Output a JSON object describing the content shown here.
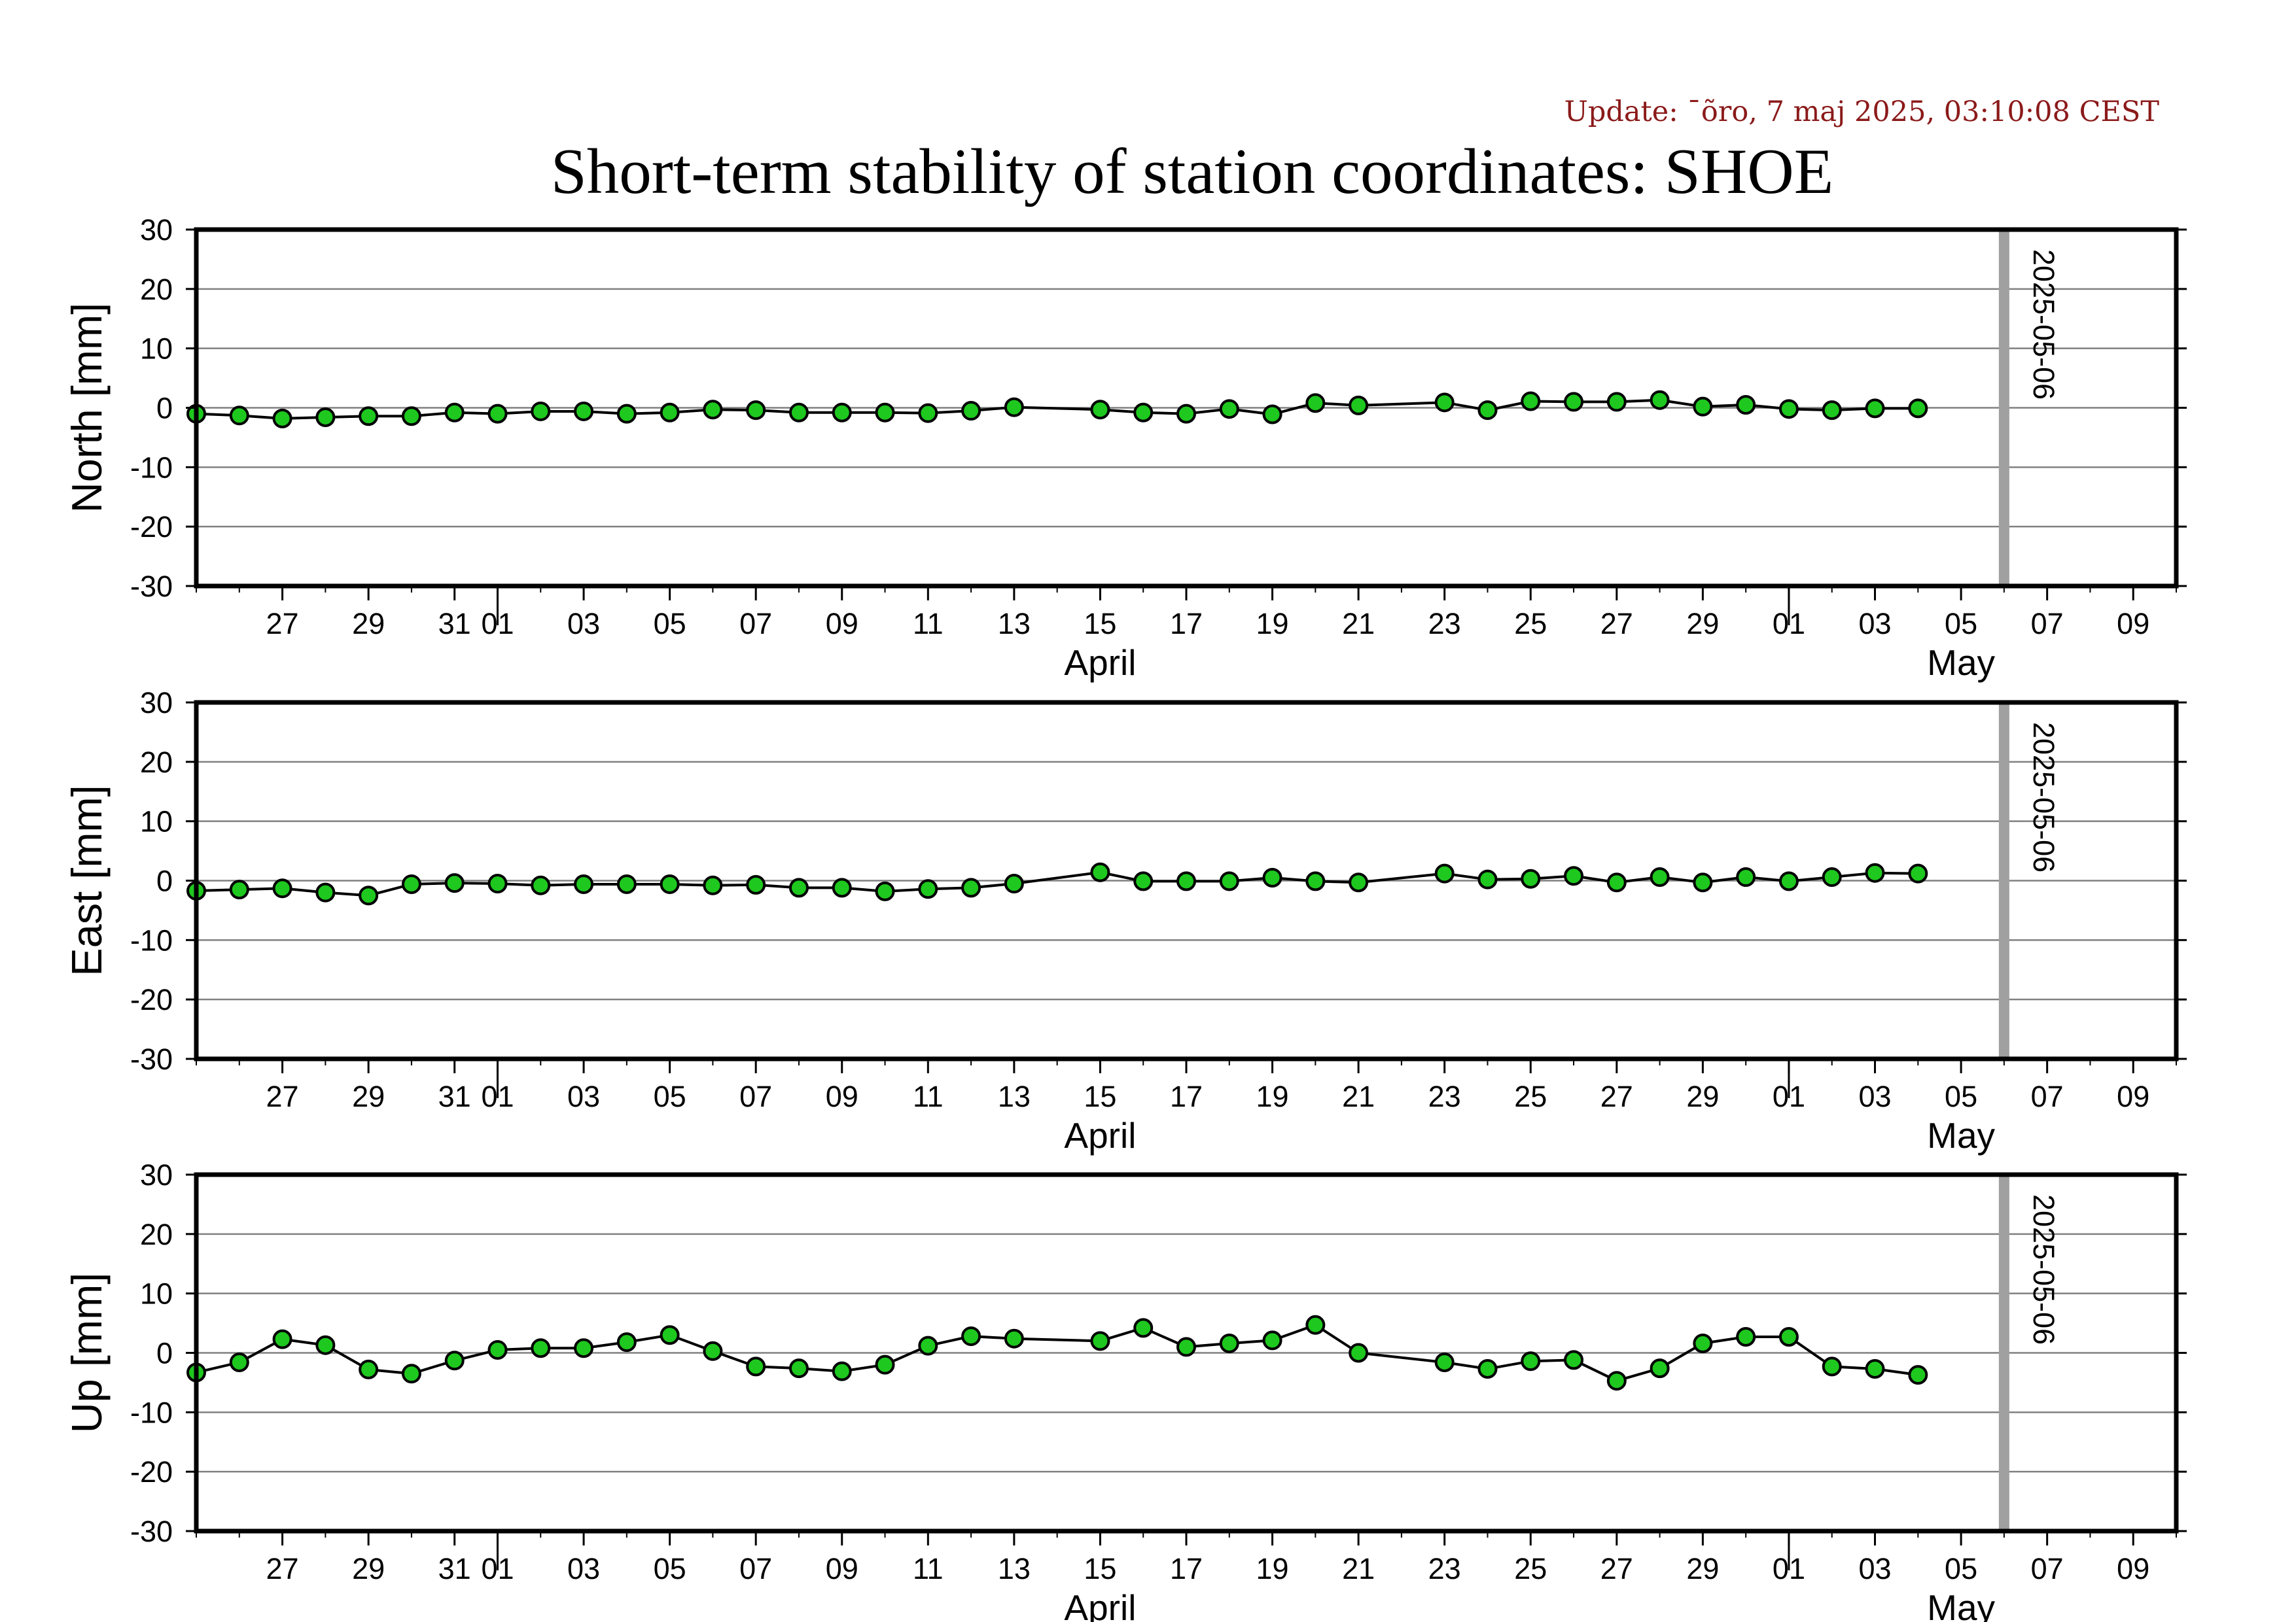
{
  "header": {
    "update_text": "Update: ¯õro, 7 maj 2025, 03:10:08 CEST",
    "title": "Short-term stability of station coordinates: SHOE"
  },
  "colors": {
    "marker_fill": "#1ec81e",
    "marker_edge": "#000000",
    "line": "#000000",
    "grid": "#808080",
    "current_date_bar": "#a0a0a0",
    "update_text": "#8b1a1a"
  },
  "chart_data": [
    {
      "type": "line",
      "ylabel": "North [mm]",
      "ylim": [
        -30,
        30
      ],
      "yticks": [
        30,
        20,
        10,
        0,
        -10,
        -20,
        -30
      ],
      "xlim": [
        "2025-03-25",
        "2025-05-10"
      ],
      "grid": true,
      "current_date_label": "2025-05-06",
      "x": [
        "2025-03-25",
        "2025-03-26",
        "2025-03-27",
        "2025-03-28",
        "2025-03-29",
        "2025-03-30",
        "2025-03-31",
        "2025-04-01",
        "2025-04-02",
        "2025-04-03",
        "2025-04-04",
        "2025-04-05",
        "2025-04-06",
        "2025-04-07",
        "2025-04-08",
        "2025-04-09",
        "2025-04-10",
        "2025-04-11",
        "2025-04-12",
        "2025-04-13",
        "2025-04-15",
        "2025-04-16",
        "2025-04-17",
        "2025-04-18",
        "2025-04-19",
        "2025-04-20",
        "2025-04-21",
        "2025-04-23",
        "2025-04-24",
        "2025-04-25",
        "2025-04-26",
        "2025-04-27",
        "2025-04-28",
        "2025-04-29",
        "2025-04-30",
        "2025-05-01",
        "2025-05-02",
        "2025-05-03",
        "2025-05-04"
      ],
      "y": [
        -1.0,
        -1.3,
        -1.8,
        -1.6,
        -1.4,
        -1.4,
        -0.8,
        -1.0,
        -0.6,
        -0.6,
        -1.0,
        -0.8,
        -0.3,
        -0.4,
        -0.8,
        -0.8,
        -0.8,
        -0.9,
        -0.5,
        0.1,
        -0.3,
        -0.8,
        -1.0,
        -0.2,
        -1.1,
        0.8,
        0.4,
        0.9,
        -0.4,
        1.1,
        1.0,
        1.0,
        1.3,
        0.2,
        0.5,
        -0.2,
        -0.4,
        -0.1,
        -0.1
      ]
    },
    {
      "type": "line",
      "ylabel": "East [mm]",
      "ylim": [
        -30,
        30
      ],
      "yticks": [
        30,
        20,
        10,
        0,
        -10,
        -20,
        -30
      ],
      "xlim": [
        "2025-03-25",
        "2025-05-10"
      ],
      "grid": true,
      "current_date_label": "2025-05-06",
      "x": [
        "2025-03-25",
        "2025-03-26",
        "2025-03-27",
        "2025-03-28",
        "2025-03-29",
        "2025-03-30",
        "2025-03-31",
        "2025-04-01",
        "2025-04-02",
        "2025-04-03",
        "2025-04-04",
        "2025-04-05",
        "2025-04-06",
        "2025-04-07",
        "2025-04-08",
        "2025-04-09",
        "2025-04-10",
        "2025-04-11",
        "2025-04-12",
        "2025-04-13",
        "2025-04-15",
        "2025-04-16",
        "2025-04-17",
        "2025-04-18",
        "2025-04-19",
        "2025-04-20",
        "2025-04-21",
        "2025-04-23",
        "2025-04-24",
        "2025-04-25",
        "2025-04-26",
        "2025-04-27",
        "2025-04-28",
        "2025-04-29",
        "2025-04-30",
        "2025-05-01",
        "2025-05-02",
        "2025-05-03",
        "2025-05-04"
      ],
      "y": [
        -1.7,
        -1.5,
        -1.3,
        -2.0,
        -2.5,
        -0.6,
        -0.4,
        -0.5,
        -0.8,
        -0.6,
        -0.6,
        -0.6,
        -0.8,
        -0.7,
        -1.2,
        -1.2,
        -1.8,
        -1.4,
        -1.2,
        -0.5,
        1.4,
        -0.1,
        -0.1,
        -0.1,
        0.5,
        -0.1,
        -0.3,
        1.2,
        0.2,
        0.3,
        0.8,
        -0.3,
        0.6,
        -0.3,
        0.6,
        -0.1,
        0.6,
        1.3,
        1.2
      ]
    },
    {
      "type": "line",
      "ylabel": "Up [mm]",
      "ylim": [
        -30,
        30
      ],
      "yticks": [
        30,
        20,
        10,
        0,
        -10,
        -20,
        -30
      ],
      "xlim": [
        "2025-03-25",
        "2025-05-10"
      ],
      "grid": true,
      "current_date_label": "2025-05-06",
      "x": [
        "2025-03-25",
        "2025-03-26",
        "2025-03-27",
        "2025-03-28",
        "2025-03-29",
        "2025-03-30",
        "2025-03-31",
        "2025-04-01",
        "2025-04-02",
        "2025-04-03",
        "2025-04-04",
        "2025-04-05",
        "2025-04-06",
        "2025-04-07",
        "2025-04-08",
        "2025-04-09",
        "2025-04-10",
        "2025-04-11",
        "2025-04-12",
        "2025-04-13",
        "2025-04-15",
        "2025-04-16",
        "2025-04-17",
        "2025-04-18",
        "2025-04-19",
        "2025-04-20",
        "2025-04-21",
        "2025-04-23",
        "2025-04-24",
        "2025-04-25",
        "2025-04-26",
        "2025-04-27",
        "2025-04-28",
        "2025-04-29",
        "2025-04-30",
        "2025-05-01",
        "2025-05-02",
        "2025-05-03",
        "2025-05-04"
      ],
      "y": [
        -3.3,
        -1.6,
        2.3,
        1.3,
        -2.8,
        -3.5,
        -1.3,
        0.5,
        0.8,
        0.8,
        1.8,
        3.0,
        0.3,
        -2.3,
        -2.6,
        -3.1,
        -2.0,
        1.2,
        2.8,
        2.4,
        2.0,
        4.2,
        1.0,
        1.6,
        2.1,
        4.7,
        0.0,
        -1.6,
        -2.7,
        -1.4,
        -1.2,
        -4.7,
        -2.6,
        1.6,
        2.7,
        2.7,
        -2.3,
        -2.7,
        -3.7
      ]
    }
  ],
  "x_axis": {
    "day_ticks": [
      {
        "date": "2025-03-27",
        "label": "27"
      },
      {
        "date": "2025-03-29",
        "label": "29"
      },
      {
        "date": "2025-03-31",
        "label": "31"
      },
      {
        "date": "2025-04-01",
        "label": "01"
      },
      {
        "date": "2025-04-03",
        "label": "03"
      },
      {
        "date": "2025-04-05",
        "label": "05"
      },
      {
        "date": "2025-04-07",
        "label": "07"
      },
      {
        "date": "2025-04-09",
        "label": "09"
      },
      {
        "date": "2025-04-11",
        "label": "11"
      },
      {
        "date": "2025-04-13",
        "label": "13"
      },
      {
        "date": "2025-04-15",
        "label": "15"
      },
      {
        "date": "2025-04-17",
        "label": "17"
      },
      {
        "date": "2025-04-19",
        "label": "19"
      },
      {
        "date": "2025-04-21",
        "label": "21"
      },
      {
        "date": "2025-04-23",
        "label": "23"
      },
      {
        "date": "2025-04-25",
        "label": "25"
      },
      {
        "date": "2025-04-27",
        "label": "27"
      },
      {
        "date": "2025-04-29",
        "label": "29"
      },
      {
        "date": "2025-05-01",
        "label": "01"
      },
      {
        "date": "2025-05-03",
        "label": "03"
      },
      {
        "date": "2025-05-05",
        "label": "05"
      },
      {
        "date": "2025-05-07",
        "label": "07"
      },
      {
        "date": "2025-05-09",
        "label": "09"
      }
    ],
    "month_labels": [
      {
        "date": "2025-04-15",
        "label": "April"
      },
      {
        "date": "2025-05-05",
        "label": "May"
      }
    ],
    "month_boundaries": [
      "2025-04-01",
      "2025-05-01"
    ]
  }
}
